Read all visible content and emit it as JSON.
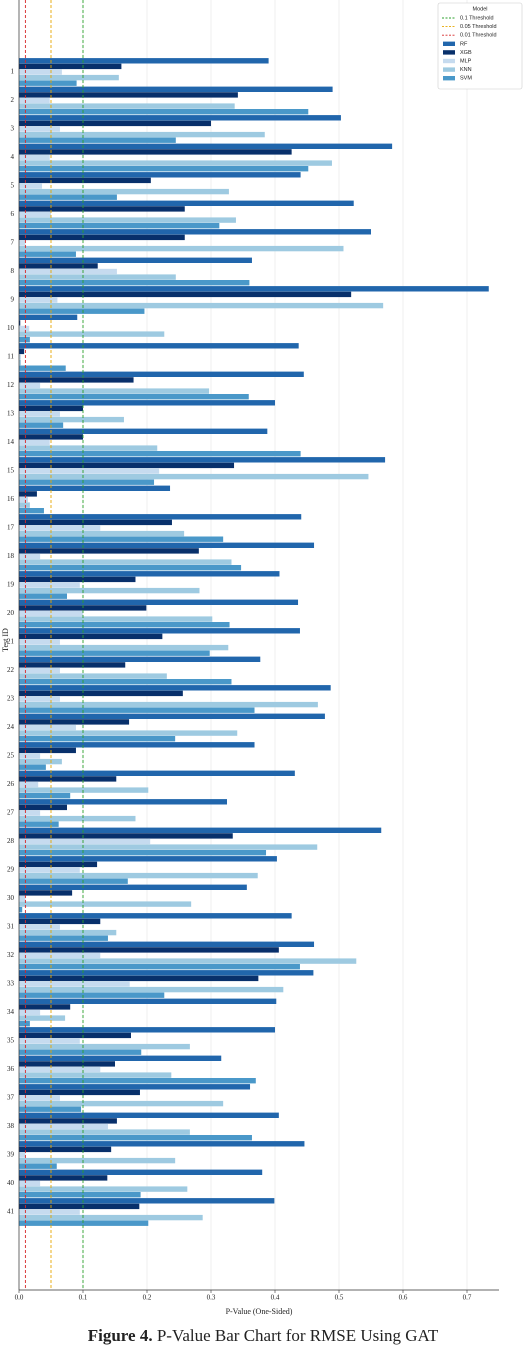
{
  "chart_data": {
    "type": "barh",
    "xlabel": "P-Value (One-Sided)",
    "ylabel": "Test ID",
    "caption_label": "Figure 4.",
    "caption_text": "P-Value Bar Chart for RMSE Using GAT",
    "legend_title": "Model",
    "legend_position": "upper right",
    "grid": true,
    "categories": [
      "1",
      "2",
      "3",
      "4",
      "5",
      "6",
      "7",
      "8",
      "9",
      "10",
      "11",
      "12",
      "13",
      "14",
      "15",
      "16",
      "17",
      "18",
      "19",
      "20",
      "21",
      "22",
      "23",
      "24",
      "25",
      "26",
      "27",
      "28",
      "29",
      "30",
      "31",
      "32",
      "33",
      "34",
      "35",
      "36",
      "37",
      "38",
      "39",
      "40",
      "41"
    ],
    "xlim": [
      0,
      0.75
    ],
    "xticks": [
      {
        "value": 0,
        "label": "0.0"
      },
      0.1,
      0.2,
      0.3,
      0.4,
      0.5,
      0.6,
      0.7
    ],
    "thresholds": [
      {
        "name": "0.1 Threshold",
        "value": 0.1,
        "color": "#2ca02c"
      },
      {
        "name": "0.05 Threshold",
        "value": 0.05,
        "color": "#e6a700"
      },
      {
        "name": "0.01 Threshold",
        "value": 0.01,
        "color": "#d62728"
      }
    ],
    "series": [
      {
        "name": "RF",
        "color": "#2166ac",
        "values": [
          0.39,
          0.49,
          0.503,
          0.583,
          0.44,
          0.523,
          0.55,
          0.364,
          0.734,
          0.091,
          0.437,
          0.445,
          0.4,
          0.388,
          0.572,
          0.236,
          0.441,
          0.461,
          0.407,
          0.436,
          0.439,
          0.377,
          0.487,
          0.478,
          0.368,
          0.431,
          0.325,
          0.566,
          0.403,
          0.356,
          0.426,
          0.461,
          0.46,
          0.402,
          0.4,
          0.316,
          0.361,
          0.406,
          0.446,
          0.38,
          0.399
        ]
      },
      {
        "name": "XGB",
        "color": "#08306b",
        "values": [
          0.16,
          0.342,
          0.3,
          0.426,
          0.206,
          0.259,
          0.259,
          0.123,
          0.519,
          0.002,
          0.008,
          0.179,
          0.1,
          0.1,
          0.336,
          0.028,
          0.239,
          0.281,
          0.182,
          0.199,
          0.224,
          0.166,
          0.256,
          0.172,
          0.089,
          0.152,
          0.075,
          0.334,
          0.122,
          0.083,
          0.127,
          0.406,
          0.374,
          0.08,
          0.175,
          0.15,
          0.189,
          0.153,
          0.144,
          0.138,
          0.188
        ]
      },
      {
        "name": "MLP",
        "color": "#c6dbef",
        "values": [
          0.067,
          0.048,
          0.064,
          0.048,
          0.036,
          0.05,
          0.01,
          0.153,
          0.06,
          0.016,
          0.003,
          0.033,
          0.064,
          0.048,
          0.219,
          0.014,
          0.127,
          0.033,
          0.095,
          0.1,
          0.064,
          0.064,
          0.064,
          0.089,
          0.033,
          0.03,
          0.033,
          0.205,
          0.095,
          0.01,
          0.064,
          0.127,
          0.173,
          0.033,
          0.095,
          0.127,
          0.064,
          0.139,
          0.01,
          0.033,
          0.095
        ]
      },
      {
        "name": "KNN",
        "color": "#9ecae1",
        "values": [
          0.156,
          0.337,
          0.384,
          0.489,
          0.328,
          0.339,
          0.507,
          0.245,
          0.569,
          0.227,
          0.003,
          0.297,
          0.164,
          0.216,
          0.546,
          0.017,
          0.258,
          0.332,
          0.282,
          0.302,
          0.327,
          0.231,
          0.467,
          0.341,
          0.067,
          0.202,
          0.182,
          0.466,
          0.373,
          0.269,
          0.152,
          0.527,
          0.413,
          0.072,
          0.267,
          0.238,
          0.319,
          0.267,
          0.244,
          0.263,
          0.287
        ]
      },
      {
        "name": "SVM",
        "color": "#4a98c9",
        "values": [
          0.09,
          0.452,
          0.245,
          0.452,
          0.153,
          0.313,
          0.089,
          0.36,
          0.196,
          0.017,
          0.073,
          0.359,
          0.069,
          0.44,
          0.211,
          0.039,
          0.319,
          0.347,
          0.075,
          0.329,
          0.298,
          0.332,
          0.368,
          0.244,
          0.042,
          0.08,
          0.062,
          0.386,
          0.17,
          0.005,
          0.139,
          0.439,
          0.227,
          0.017,
          0.191,
          0.37,
          0.097,
          0.364,
          0.059,
          0.19,
          0.202
        ]
      }
    ]
  }
}
